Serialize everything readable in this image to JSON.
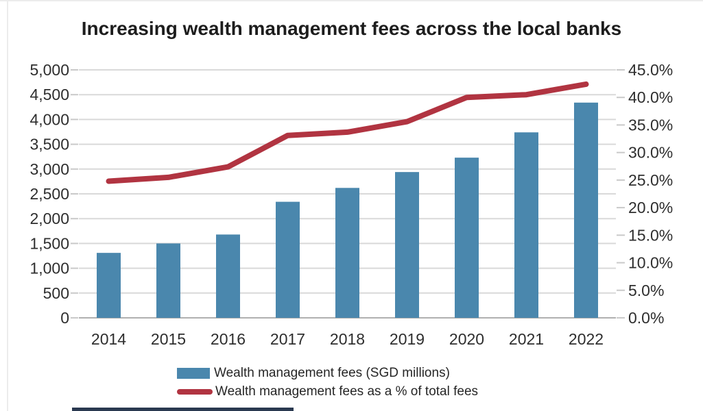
{
  "chart_data": {
    "type": "bar",
    "subtype": "combo-bar-line",
    "title": "Increasing wealth management fees across the local banks",
    "categories": [
      "2014",
      "2015",
      "2016",
      "2017",
      "2018",
      "2019",
      "2020",
      "2021",
      "2022"
    ],
    "series": [
      {
        "name": "Wealth management fees (SGD millions)",
        "type": "bar",
        "axis": "left",
        "color": "#4a87ad",
        "values": [
          1310,
          1500,
          1680,
          2340,
          2620,
          2940,
          3230,
          3740,
          4340
        ]
      },
      {
        "name": "Wealth management fees as a % of total fees",
        "type": "line",
        "axis": "right",
        "color": "#b13441",
        "values": [
          24.8,
          25.5,
          27.4,
          33.1,
          33.7,
          35.6,
          40.0,
          40.5,
          42.4
        ]
      }
    ],
    "left_axis": {
      "min": 0,
      "max": 5000,
      "step": 500,
      "tick_labels": [
        "0",
        "500",
        "1,000",
        "1,500",
        "2,000",
        "2,500",
        "3,000",
        "3,500",
        "4,000",
        "4,500",
        "5,000"
      ]
    },
    "right_axis": {
      "min": 0,
      "max": 45,
      "step": 5,
      "tick_labels": [
        "0.0%",
        "5.0%",
        "10.0%",
        "15.0%",
        "20.0%",
        "25.0%",
        "30.0%",
        "35.0%",
        "40.0%",
        "45.0%"
      ]
    },
    "grid": true,
    "legend_position": "bottom",
    "xlabel": "",
    "ylabel": "",
    "grid_color": "#d9d9d9",
    "axis_line_color": "#b0b0b0",
    "text_color": "#2e2e2e"
  }
}
